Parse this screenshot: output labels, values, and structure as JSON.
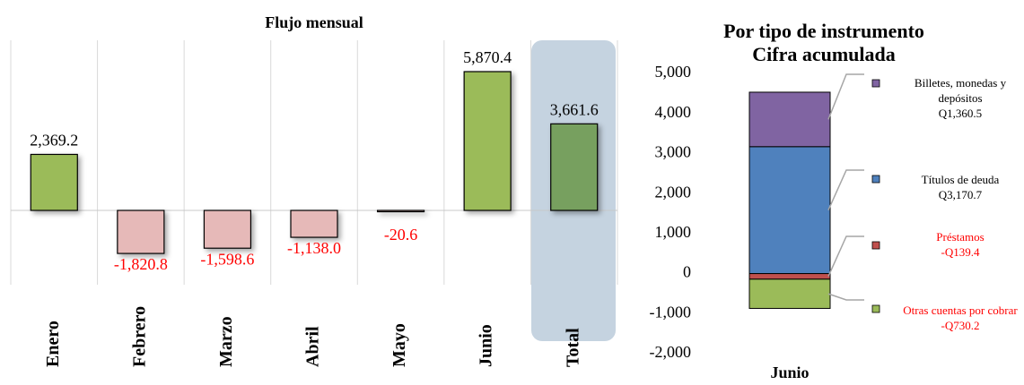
{
  "chart_data": [
    {
      "type": "bar",
      "title": "Flujo mensual",
      "categories": [
        "Enero",
        "Febrero",
        "Marzo",
        "Abril",
        "Mayo",
        "Junio",
        "Total"
      ],
      "values": [
        2369.2,
        -1820.8,
        -1598.6,
        -1138.0,
        -20.6,
        5870.4,
        3661.6
      ],
      "value_labels": [
        "2,369.2",
        "-1,820.8",
        "-1,598.6",
        "-1,138.0",
        "-20.6",
        "5,870.4",
        "3,661.6"
      ],
      "colors": [
        "#9bbb59",
        "#e6b9b8",
        "#e6b9b8",
        "#e6b9b8",
        "#e6b9b8",
        "#9bbb59",
        "#77a05f"
      ],
      "negative_label_color": "#ff0000"
    },
    {
      "type": "stacked_bar",
      "title": "Por tipo de instrumento",
      "subtitle": "Cifra acumulada",
      "categories": [
        "Junio"
      ],
      "series": [
        {
          "name": "Títulos de deuda",
          "color": "#4f81bd",
          "values": [
            3170.7
          ],
          "value_labels": [
            "Q3,170.7"
          ],
          "label_color": "#000000"
        },
        {
          "name": "Billetes, monedas y depósitos",
          "color": "#8064a2",
          "values": [
            1360.5
          ],
          "value_labels": [
            "Q1,360.5"
          ],
          "label_color": "#000000"
        },
        {
          "name": "Préstamos",
          "color": "#c0504d",
          "values": [
            -139.4
          ],
          "value_labels": [
            "-Q139.4"
          ],
          "label_color": "#ff0000"
        },
        {
          "name": "Otras cuentas por cobrar",
          "color": "#9bbb59",
          "values": [
            -730.2
          ],
          "value_labels": [
            "-Q730.2"
          ],
          "label_color": "#ff0000"
        }
      ],
      "ylim": [
        -2000,
        5000
      ],
      "yticks": [
        {
          "value": -2000,
          "label": "-2,000"
        },
        {
          "value": -1000,
          "label": "-1,000"
        },
        0,
        {
          "value": 1000,
          "label": "1,000"
        },
        {
          "value": 2000,
          "label": "2,000"
        },
        {
          "value": 3000,
          "label": "3,000"
        },
        {
          "value": 4000,
          "label": "4,000"
        },
        {
          "value": 5000,
          "label": "5,000"
        }
      ]
    }
  ]
}
